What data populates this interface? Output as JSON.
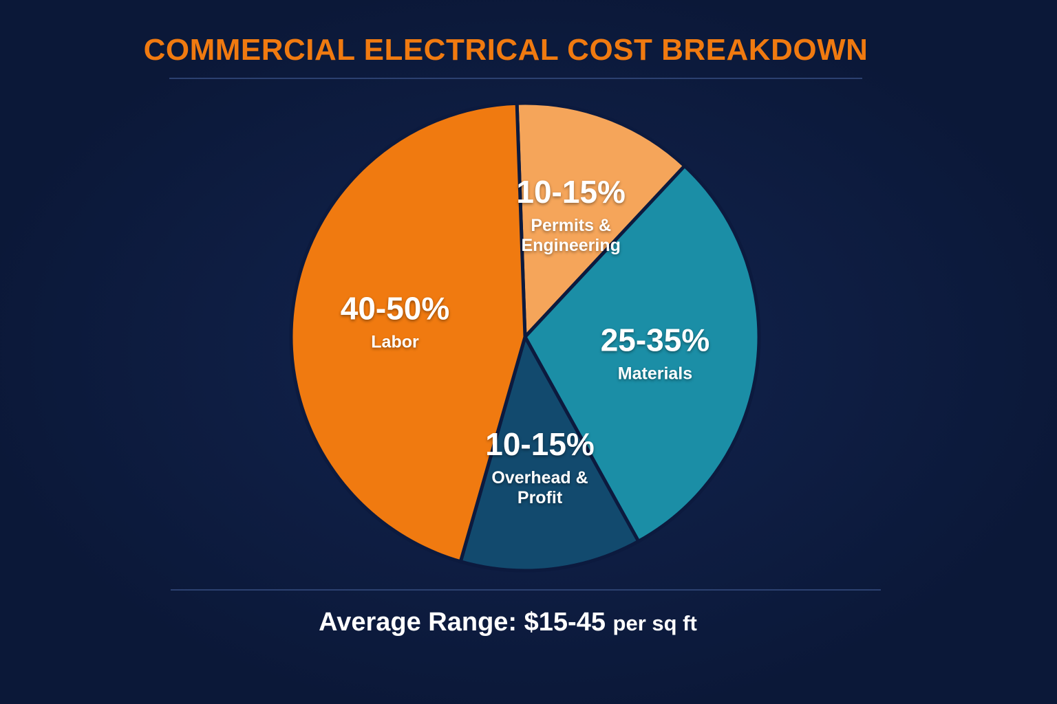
{
  "chart_data": {
    "type": "pie",
    "title": "COMMERCIAL ELECTRICAL COST BREAKDOWN",
    "categories": [
      "Permits & Engineering",
      "Materials",
      "Overhead & Profit",
      "Labor"
    ],
    "values": [
      12.5,
      30,
      12.5,
      45
    ],
    "value_labels": [
      "10-15%",
      "25-35%",
      "10-15%",
      "40-50%"
    ],
    "colors": [
      "#f5a55a",
      "#1b8ea6",
      "#124a6e",
      "#f07a10"
    ],
    "footer": {
      "label": "Average Range:",
      "value": "$15-45",
      "unit": "per sq ft"
    }
  }
}
